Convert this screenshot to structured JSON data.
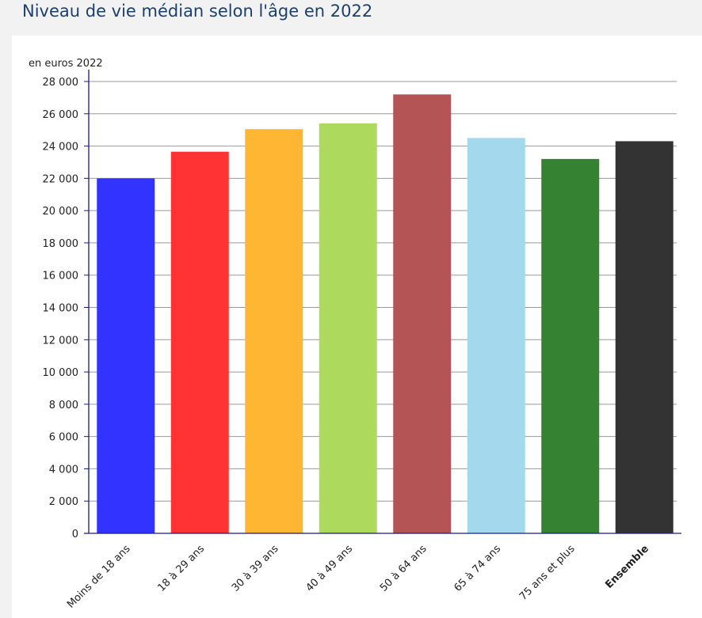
{
  "page": {
    "title": "Niveau de vie médian selon l'âge en 2022"
  },
  "chart_data": {
    "type": "bar",
    "title": "Niveau de vie médian selon l'âge en 2022",
    "ylabel": "en euros 2022",
    "xlabel": "",
    "ylim": [
      0,
      28000
    ],
    "ytick_step": 2000,
    "yticks": [
      "0",
      "2 000",
      "4 000",
      "6 000",
      "8 000",
      "10 000",
      "12 000",
      "14 000",
      "16 000",
      "18 000",
      "20 000",
      "22 000",
      "24 000",
      "26 000",
      "28 000"
    ],
    "grid": true,
    "legend": "none",
    "categories": [
      "Moins de 18 ans",
      "18 à 29 ans",
      "30 à 39 ans",
      "40 à 49 ans",
      "50 à 64 ans",
      "65 à 74 ans",
      "75 ans et plus",
      "Ensemble"
    ],
    "values": [
      22000,
      23650,
      25050,
      25400,
      27200,
      24500,
      23200,
      24300
    ],
    "colors": [
      "#3333ff",
      "#ff3333",
      "#ffb733",
      "#add95c",
      "#b55454",
      "#a3d8ed",
      "#358232",
      "#333333"
    ],
    "bold_categories": [
      "Ensemble"
    ],
    "axis_color": "#1a1a8c",
    "grid_color": "#999999"
  }
}
